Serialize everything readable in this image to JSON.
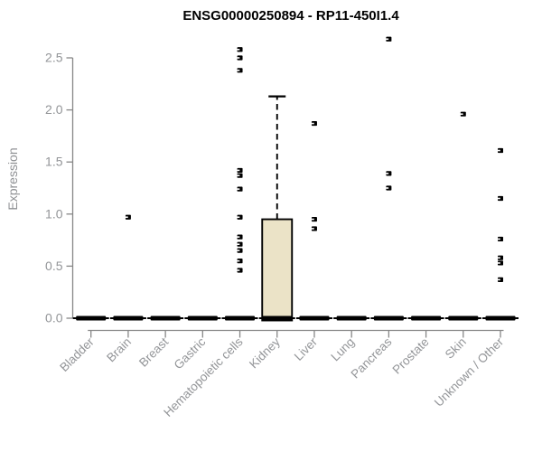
{
  "chart_data": {
    "type": "boxplot",
    "title": "ENSG00000250894 - RP11-450I1.4",
    "ylabel": "Expression",
    "xlabel": "",
    "ylim": [
      0,
      2.7
    ],
    "yticks": [
      0.0,
      0.5,
      1.0,
      1.5,
      2.0,
      2.5
    ],
    "grid": false,
    "legend": null,
    "categories": [
      "Bladder",
      "Brain",
      "Breast",
      "Gastric",
      "Hematopoietic cells",
      "Kidney",
      "Liver",
      "Lung",
      "Pancreas",
      "Prostate",
      "Skin",
      "Unknown / Other"
    ],
    "boxes": [
      {
        "category": "Bladder",
        "whisker_low": 0,
        "q1": 0,
        "median": 0,
        "q3": 0,
        "whisker_high": 0,
        "outliers": []
      },
      {
        "category": "Brain",
        "whisker_low": 0,
        "q1": 0,
        "median": 0,
        "q3": 0,
        "whisker_high": 0,
        "outliers": [
          0.97
        ]
      },
      {
        "category": "Breast",
        "whisker_low": 0,
        "q1": 0,
        "median": 0,
        "q3": 0,
        "whisker_high": 0,
        "outliers": []
      },
      {
        "category": "Gastric",
        "whisker_low": 0,
        "q1": 0,
        "median": 0,
        "q3": 0,
        "whisker_high": 0,
        "outliers": []
      },
      {
        "category": "Hematopoietic cells",
        "whisker_low": 0,
        "q1": 0,
        "median": 0,
        "q3": 0,
        "whisker_high": 0,
        "outliers": [
          2.58,
          2.5,
          2.38,
          1.42,
          1.37,
          1.24,
          0.97,
          0.78,
          0.71,
          0.65,
          0.55,
          0.46
        ]
      },
      {
        "category": "Kidney",
        "whisker_low": 0,
        "q1": 0,
        "median": 0,
        "q3": 0.95,
        "whisker_high": 2.13,
        "outliers": []
      },
      {
        "category": "Liver",
        "whisker_low": 0,
        "q1": 0,
        "median": 0,
        "q3": 0,
        "whisker_high": 0,
        "outliers": [
          1.87,
          0.95,
          0.86
        ]
      },
      {
        "category": "Lung",
        "whisker_low": 0,
        "q1": 0,
        "median": 0,
        "q3": 0,
        "whisker_high": 0,
        "outliers": []
      },
      {
        "category": "Pancreas",
        "whisker_low": 0,
        "q1": 0,
        "median": 0,
        "q3": 0,
        "whisker_high": 0,
        "outliers": [
          2.68,
          1.39,
          1.25
        ]
      },
      {
        "category": "Prostate",
        "whisker_low": 0,
        "q1": 0,
        "median": 0,
        "q3": 0,
        "whisker_high": 0,
        "outliers": []
      },
      {
        "category": "Skin",
        "whisker_low": 0,
        "q1": 0,
        "median": 0,
        "q3": 0,
        "whisker_high": 0,
        "outliers": [
          1.96
        ]
      },
      {
        "category": "Unknown / Other",
        "whisker_low": 0,
        "q1": 0,
        "median": 0,
        "q3": 0,
        "whisker_high": 0,
        "outliers": [
          1.61,
          1.15,
          0.76,
          0.58,
          0.53,
          0.37
        ]
      }
    ],
    "colors": {
      "box_fill": "#ebe3c7",
      "box_border": "#000000",
      "median": "#000000",
      "whisker": "#000000",
      "point": "#000000",
      "point_center": "#ffffff",
      "axis_line": "#878787",
      "tick_text": "#939598",
      "axis_title_text": "#8f9194",
      "title_text": "#000000",
      "background": "#ffffff"
    }
  }
}
